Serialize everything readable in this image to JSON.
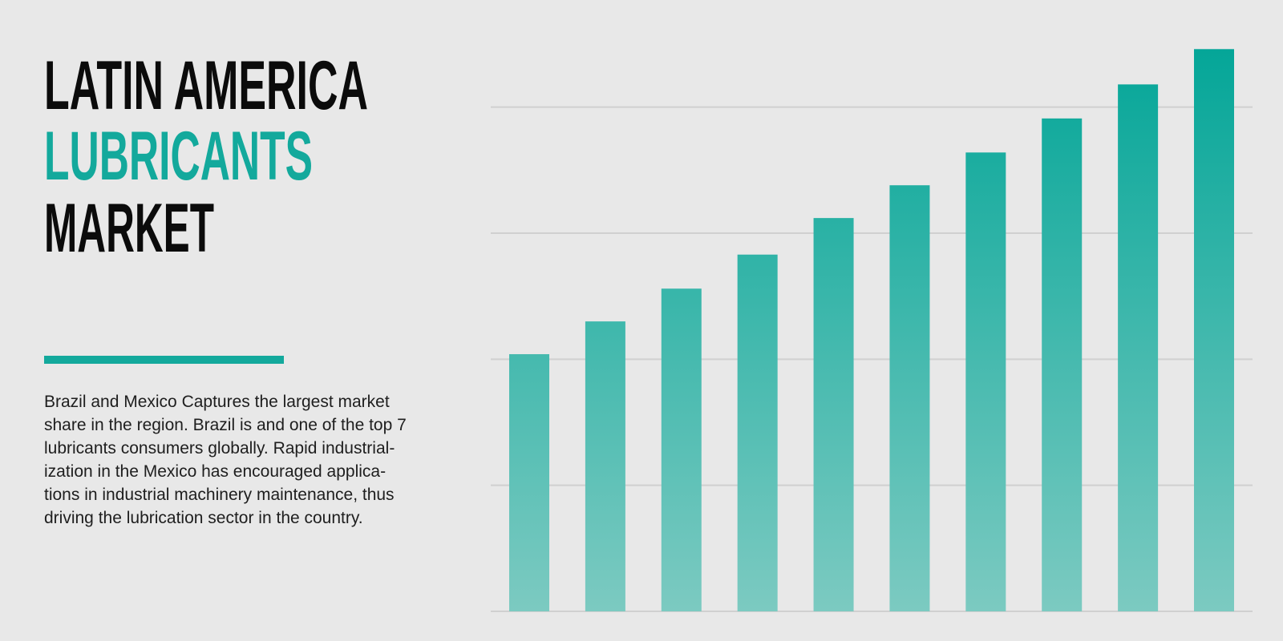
{
  "header": {
    "title_lines": [
      "LATIN AMERICA",
      "LUBRICANTS",
      "MARKET"
    ],
    "description_lines": [
      "Brazil and Mexico Captures the largest market",
      "share in the region. Brazil is and one of the top 7",
      "lubricants consumers globally. Rapid industrial-",
      "ization in the Mexico has encouraged applica-",
      "tions in industrial machinery maintenance, thus",
      "driving the lubrication sector in the country."
    ]
  },
  "chart_data": {
    "type": "bar",
    "categories": [
      null,
      null,
      null,
      null,
      null,
      null,
      null,
      null,
      null,
      null
    ],
    "values": [
      2.04,
      2.3,
      2.56,
      2.83,
      3.12,
      3.38,
      3.64,
      3.91,
      4.18,
      4.46
    ],
    "color": "#13ab9d",
    "ylim": [
      0,
      4.5
    ],
    "yticks": [
      0,
      1,
      2,
      3,
      4
    ],
    "grid": true
  }
}
